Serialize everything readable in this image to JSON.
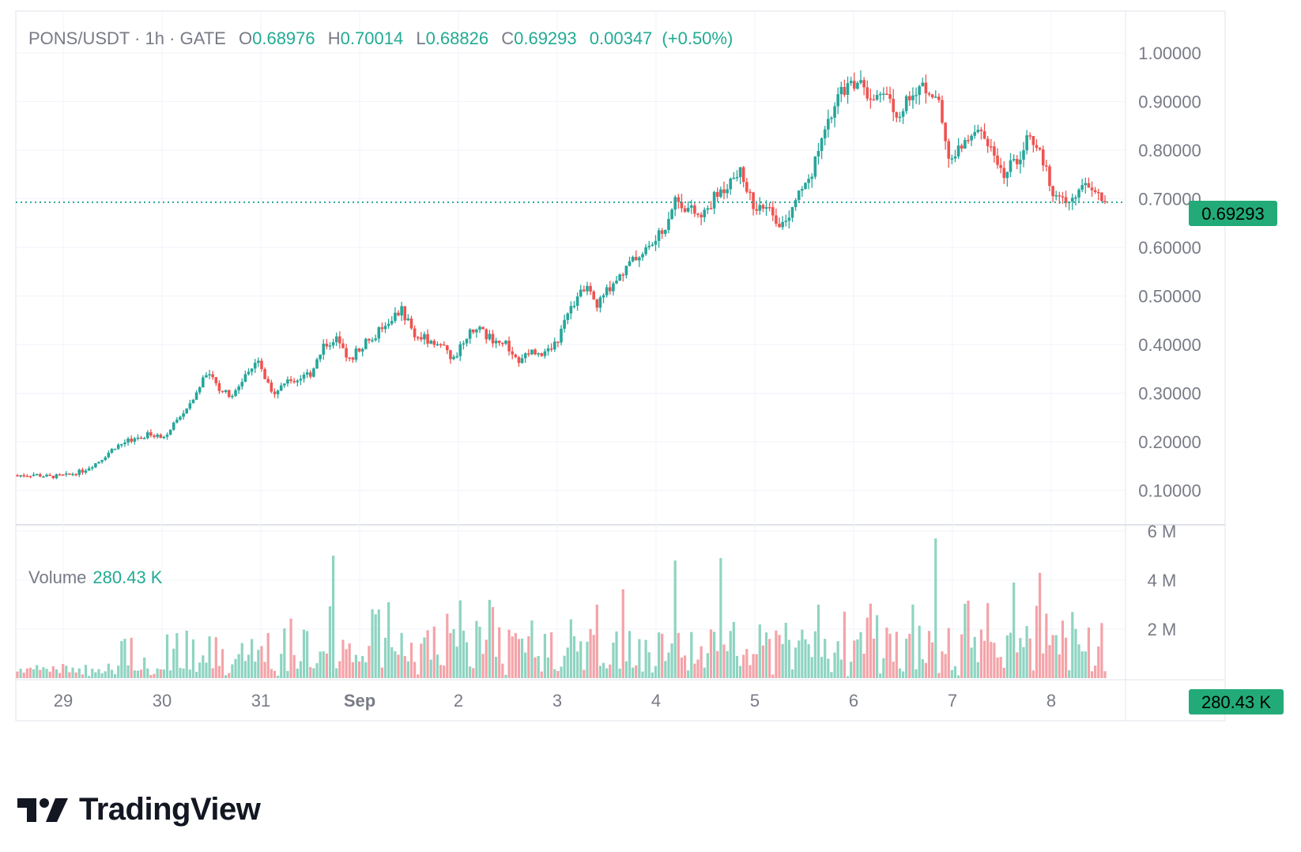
{
  "legend": {
    "symbol": "PONS/USDT",
    "interval": "1h",
    "exchange": "GATE",
    "open_label": "O",
    "open": "0.68976",
    "high_label": "H",
    "high": "0.70014",
    "low_label": "L",
    "low": "0.68826",
    "close_label": "C",
    "close": "0.69293",
    "change": "0.00347",
    "change_pct": "(+0.50%)"
  },
  "volume_legend": {
    "label": "Volume",
    "value": "280.43 K"
  },
  "price_badge": "0.69293",
  "volume_badge": "280.43 K",
  "brand": "TradingView",
  "colors": {
    "up": "#26a69a",
    "down": "#ef5350",
    "up_volume": "#8ed4c1",
    "down_volume": "#f4a3a8",
    "badge": "#22ab79",
    "grid": "#f0f3fa",
    "axis_text": "#787b86"
  },
  "chart_data": [
    {
      "type": "candlestick",
      "title": "PONS/USDT · 1h · GATE",
      "ylim": [
        0,
        1.0
      ],
      "y_ticks": [
        "1.00000",
        "0.90000",
        "0.80000",
        "0.70000",
        "0.60000",
        "0.50000",
        "0.40000",
        "0.30000",
        "0.20000",
        "0.10000"
      ],
      "x_ticks": [
        "29",
        "30",
        "31",
        "Sep",
        "2",
        "3",
        "4",
        "5",
        "6",
        "7",
        "8"
      ],
      "last_price": 0.69293,
      "price_path": [
        [
          0,
          0.131
        ],
        [
          5,
          0.133
        ],
        [
          10,
          0.128
        ],
        [
          15,
          0.131
        ],
        [
          20,
          0.14
        ],
        [
          25,
          0.16
        ],
        [
          30,
          0.19
        ],
        [
          35,
          0.205
        ],
        [
          40,
          0.215
        ],
        [
          45,
          0.21
        ],
        [
          50,
          0.25
        ],
        [
          55,
          0.3
        ],
        [
          58,
          0.345
        ],
        [
          62,
          0.31
        ],
        [
          66,
          0.29
        ],
        [
          70,
          0.34
        ],
        [
          74,
          0.36
        ],
        [
          78,
          0.3
        ],
        [
          82,
          0.32
        ],
        [
          86,
          0.33
        ],
        [
          90,
          0.34
        ],
        [
          94,
          0.4
        ],
        [
          98,
          0.41
        ],
        [
          102,
          0.37
        ],
        [
          106,
          0.4
        ],
        [
          110,
          0.42
        ],
        [
          114,
          0.45
        ],
        [
          118,
          0.47
        ],
        [
          122,
          0.42
        ],
        [
          126,
          0.41
        ],
        [
          130,
          0.4
        ],
        [
          134,
          0.37
        ],
        [
          138,
          0.42
        ],
        [
          142,
          0.43
        ],
        [
          146,
          0.41
        ],
        [
          150,
          0.4
        ],
        [
          154,
          0.36
        ],
        [
          158,
          0.39
        ],
        [
          162,
          0.38
        ],
        [
          166,
          0.41
        ],
        [
          170,
          0.48
        ],
        [
          174,
          0.52
        ],
        [
          178,
          0.48
        ],
        [
          182,
          0.52
        ],
        [
          186,
          0.55
        ],
        [
          190,
          0.58
        ],
        [
          194,
          0.6
        ],
        [
          198,
          0.63
        ],
        [
          202,
          0.7
        ],
        [
          206,
          0.68
        ],
        [
          210,
          0.66
        ],
        [
          214,
          0.7
        ],
        [
          218,
          0.73
        ],
        [
          222,
          0.75
        ],
        [
          226,
          0.69
        ],
        [
          230,
          0.68
        ],
        [
          234,
          0.65
        ],
        [
          238,
          0.68
        ],
        [
          242,
          0.73
        ],
        [
          246,
          0.79
        ],
        [
          250,
          0.87
        ],
        [
          254,
          0.93
        ],
        [
          258,
          0.94
        ],
        [
          262,
          0.91
        ],
        [
          266,
          0.93
        ],
        [
          270,
          0.88
        ],
        [
          274,
          0.9
        ],
        [
          278,
          0.94
        ],
        [
          282,
          0.92
        ],
        [
          286,
          0.79
        ],
        [
          290,
          0.8
        ],
        [
          294,
          0.85
        ],
        [
          298,
          0.82
        ],
        [
          302,
          0.75
        ],
        [
          306,
          0.77
        ],
        [
          310,
          0.82
        ],
        [
          314,
          0.8
        ],
        [
          318,
          0.72
        ],
        [
          322,
          0.7
        ],
        [
          326,
          0.71
        ],
        [
          330,
          0.73
        ],
        [
          334,
          0.69
        ]
      ],
      "volume_peaks": [
        [
          97,
          5.0
        ],
        [
          111,
          2.8
        ],
        [
          114,
          3.1
        ],
        [
          134,
          2.0
        ],
        [
          146,
          2.9
        ],
        [
          178,
          3.0
        ],
        [
          202,
          4.8
        ],
        [
          216,
          4.9
        ],
        [
          246,
          3.0
        ],
        [
          282,
          5.7
        ],
        [
          306,
          3.9
        ],
        [
          314,
          4.3
        ],
        [
          330,
          0.28
        ]
      ]
    },
    {
      "type": "bar",
      "title": "Volume",
      "ylim": [
        0,
        6000000
      ],
      "y_ticks": [
        "6 M",
        "4 M",
        "2 M"
      ],
      "last_value": 280430
    }
  ]
}
